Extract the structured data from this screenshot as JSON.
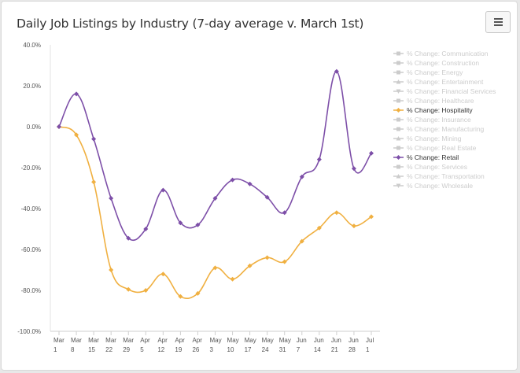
{
  "chart_data": {
    "type": "line",
    "title": "Daily Job Listings by Industry (7-day average v. March 1st)",
    "menu_icon": "hamburger-menu-icon",
    "ylim": [
      -100,
      40
    ],
    "yticks": [
      "40.0%",
      "20.0%",
      "0.0%",
      "-20.0%",
      "-40.0%",
      "-60.0%",
      "-80.0%",
      "-100.0%"
    ],
    "ytick_values": [
      40,
      20,
      0,
      -20,
      -40,
      -60,
      -80,
      -100
    ],
    "categories": [
      [
        "Mar",
        "1"
      ],
      [
        "Mar",
        "8"
      ],
      [
        "Mar",
        "15"
      ],
      [
        "Mar",
        "22"
      ],
      [
        "Mar",
        "29"
      ],
      [
        "Apr",
        "5"
      ],
      [
        "Apr",
        "12"
      ],
      [
        "Apr",
        "19"
      ],
      [
        "Apr",
        "26"
      ],
      [
        "May",
        "3"
      ],
      [
        "May",
        "10"
      ],
      [
        "May",
        "17"
      ],
      [
        "May",
        "24"
      ],
      [
        "May",
        "31"
      ],
      [
        "Jun",
        "7"
      ],
      [
        "Jun",
        "14"
      ],
      [
        "Jun",
        "21"
      ],
      [
        "Jun",
        "28"
      ],
      [
        "Jul",
        "1"
      ]
    ],
    "legend_position": "right",
    "legend": [
      {
        "label": "% Change: Communication",
        "marker": "square",
        "active": false
      },
      {
        "label": "% Change: Construction",
        "marker": "square",
        "active": false
      },
      {
        "label": "% Change: Energy",
        "marker": "square",
        "active": false
      },
      {
        "label": "% Change: Entertainment",
        "marker": "triangle",
        "active": false
      },
      {
        "label": "% Change: Financial Services",
        "marker": "triangle-down",
        "active": false
      },
      {
        "label": "% Change: Healthcare",
        "marker": "square",
        "active": false
      },
      {
        "label": "% Change: Hospitality",
        "marker": "diamond",
        "active": true,
        "color": "#f0b041"
      },
      {
        "label": "% Change: Insurance",
        "marker": "square",
        "active": false
      },
      {
        "label": "% Change: Manufacturing",
        "marker": "square",
        "active": false
      },
      {
        "label": "% Change: Mining",
        "marker": "triangle",
        "active": false
      },
      {
        "label": "% Change: Real Estate",
        "marker": "square",
        "active": false
      },
      {
        "label": "% Change: Retail",
        "marker": "diamond",
        "active": true,
        "color": "#7d4fa8"
      },
      {
        "label": "% Change: Services",
        "marker": "square",
        "active": false
      },
      {
        "label": "% Change: Transportation",
        "marker": "triangle",
        "active": false
      },
      {
        "label": "% Change: Wholesale",
        "marker": "triangle-down",
        "active": false
      }
    ],
    "inactive_color": "#cccccc",
    "series": [
      {
        "name": "% Change: Hospitality",
        "color": "#f0b041",
        "values": [
          0,
          -4,
          -27,
          -70,
          -79.5,
          -80,
          -72,
          -83,
          -81.5,
          -69,
          -74.5,
          -68,
          -64,
          -66,
          -56,
          -49.5,
          -42,
          -48.5,
          -44
        ]
      },
      {
        "name": "% Change: Retail",
        "color": "#7d4fa8",
        "values": [
          0,
          16,
          -6,
          -35,
          -54.5,
          -50,
          -31,
          -47,
          -48,
          -35,
          -26,
          -28,
          -34.5,
          -42,
          -24.5,
          -16,
          27,
          -20.5,
          -13
        ]
      }
    ]
  }
}
